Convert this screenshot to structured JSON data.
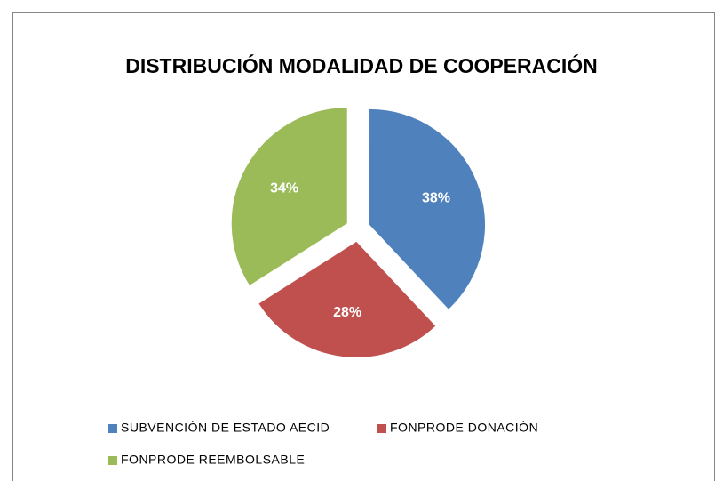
{
  "chart_data": {
    "type": "pie",
    "title": "DISTRIBUCIÓN MODALIDAD DE COOPERACIÓN",
    "categories": [
      "SUBVENCIÓN DE ESTADO AECID",
      "FONPRODE DONACIÓN",
      "FONPRODE REEMBOLSABLE"
    ],
    "values": [
      38,
      28,
      34
    ],
    "value_labels": [
      "38%",
      "28%",
      "34%"
    ],
    "colors": [
      "#4f81bd",
      "#c0504d",
      "#9bbb59"
    ],
    "legend": "bottom"
  }
}
